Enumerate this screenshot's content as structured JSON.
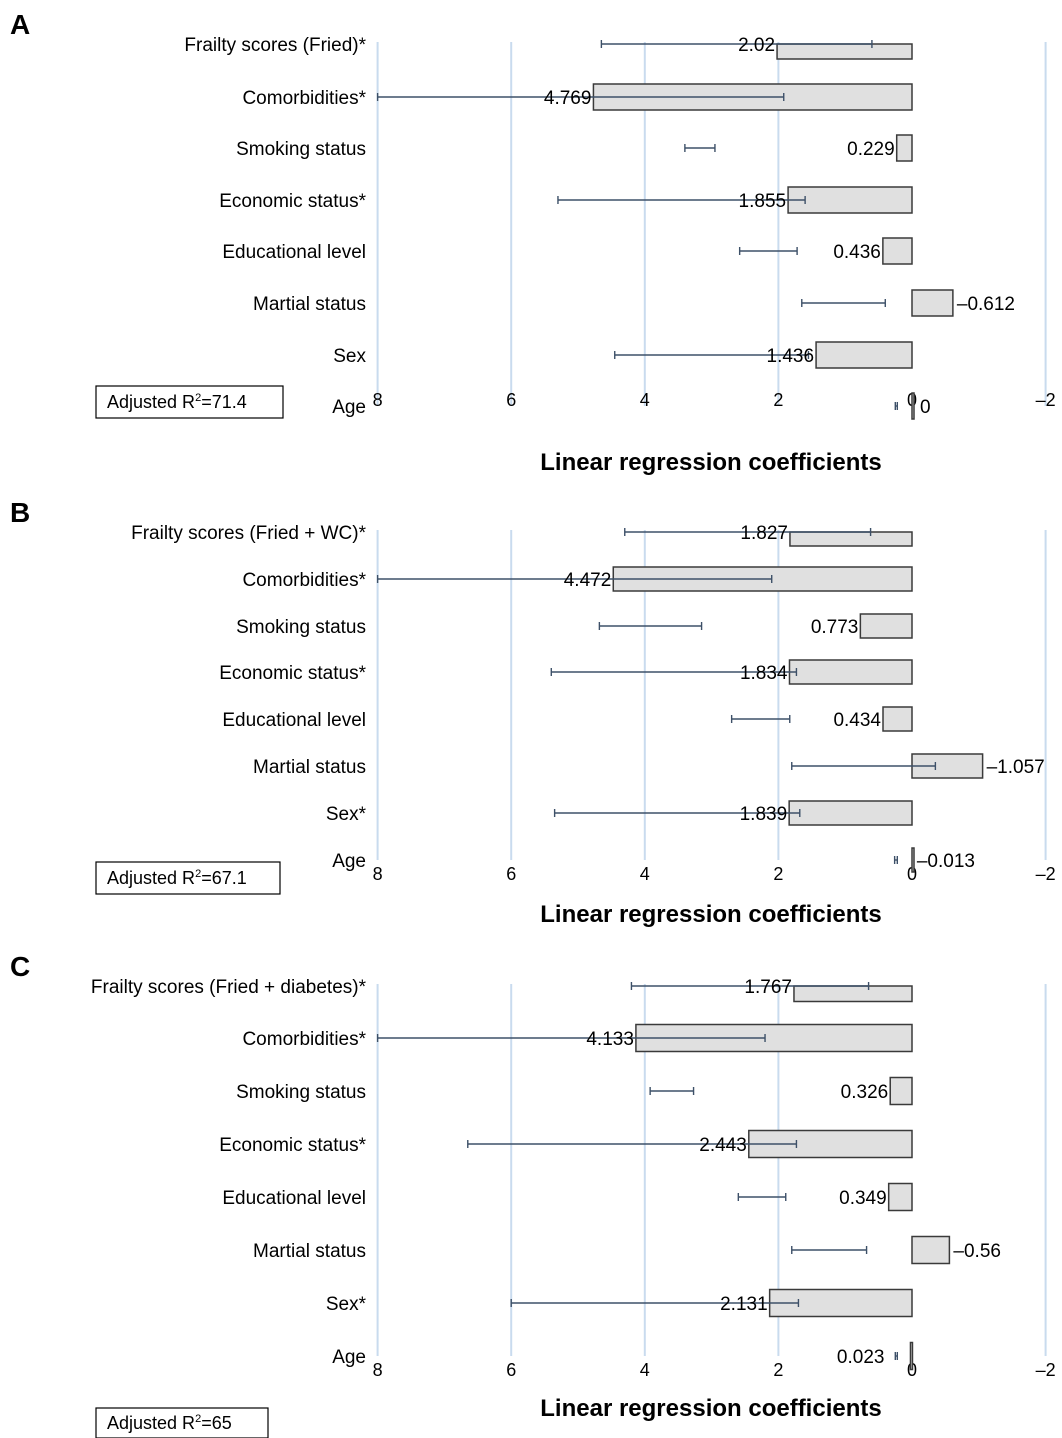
{
  "colors": {
    "bar_fill": "#e0e0e0",
    "bar_stroke": "#3a3a3a",
    "gridline": "#c9dbee",
    "errorbar": "#3d5068"
  },
  "chart_data": [
    {
      "type": "bar",
      "orientation": "horizontal",
      "panel": "A",
      "categories": [
        "Frailty scores (Fried)*",
        "Comorbidities*",
        "Smoking status",
        "Economic status*",
        "Educational level",
        "Martial status",
        "Sex",
        "Age"
      ],
      "values": [
        2.02,
        4.769,
        0.229,
        1.855,
        0.436,
        -0.612,
        1.436,
        0
      ],
      "value_labels": [
        "2.02",
        "4.769",
        "0.229",
        "1.855",
        "0.436",
        "–0.612",
        "1.436",
        "0"
      ],
      "error_low": [
        0.6,
        1.92,
        2.95,
        1.6,
        1.72,
        0.4,
        1.55,
        0.22
      ],
      "error_high": [
        4.65,
        8.0,
        3.4,
        5.3,
        2.58,
        1.65,
        4.45,
        0.25
      ],
      "xlabel": "Linear regression coefficients",
      "x_ticks": [
        "8",
        "6",
        "4",
        "2",
        "0",
        "–2"
      ],
      "xlim": [
        8,
        -2
      ],
      "x_reversed": true,
      "grid": true,
      "annotation": {
        "prefix": "Adjusted R",
        "sup": "2",
        "suffix": "=71.4"
      }
    },
    {
      "type": "bar",
      "orientation": "horizontal",
      "panel": "B",
      "categories": [
        "Frailty scores (Fried + WC)*",
        "Comorbidities*",
        "Smoking status",
        "Economic status*",
        "Educational level",
        "Martial status",
        "Sex*",
        "Age"
      ],
      "values": [
        1.827,
        4.472,
        0.773,
        1.834,
        0.434,
        -1.057,
        1.839,
        -0.013
      ],
      "value_labels": [
        "1.827",
        "4.472",
        "0.773",
        "1.834",
        "0.434",
        "–1.057",
        "1.839",
        "–0.013"
      ],
      "error_low": [
        0.62,
        2.1,
        3.15,
        1.73,
        1.83,
        -0.35,
        1.68,
        0.22
      ],
      "error_high": [
        4.3,
        8.0,
        4.68,
        5.4,
        2.7,
        1.8,
        5.35,
        0.26
      ],
      "xlabel": "Linear regression coefficients",
      "x_ticks": [
        "8",
        "6",
        "4",
        "2",
        "0",
        "–2"
      ],
      "xlim": [
        8,
        -2
      ],
      "x_reversed": true,
      "grid": true,
      "annotation": {
        "prefix": "Adjusted R",
        "sup": "2",
        "suffix": "=67.1"
      }
    },
    {
      "type": "bar",
      "orientation": "horizontal",
      "panel": "C",
      "categories": [
        "Frailty scores (Fried + diabetes)*",
        "Comorbidities*",
        "Smoking status",
        "Economic status*",
        "Educational level",
        "Martial status",
        "Sex*",
        "Age"
      ],
      "values": [
        1.767,
        4.133,
        0.326,
        2.443,
        0.349,
        -0.56,
        2.131,
        0.023
      ],
      "value_labels": [
        "1.767",
        "4.133",
        "0.326",
        "2.443",
        "0.349",
        "–0.56",
        "2.131",
        "0.023"
      ],
      "error_low": [
        0.65,
        2.2,
        3.27,
        1.73,
        1.89,
        0.68,
        1.7,
        0.22
      ],
      "error_high": [
        4.2,
        8.0,
        3.92,
        6.65,
        2.6,
        1.8,
        6.0,
        0.25
      ],
      "xlabel": "Linear regression coefficients",
      "x_ticks": [
        "8",
        "6",
        "4",
        "2",
        "0",
        "–2"
      ],
      "xlim": [
        8,
        -2
      ],
      "x_reversed": true,
      "grid": true,
      "annotation": {
        "prefix": "Adjusted R",
        "sup": "2",
        "suffix": "=65"
      }
    }
  ]
}
